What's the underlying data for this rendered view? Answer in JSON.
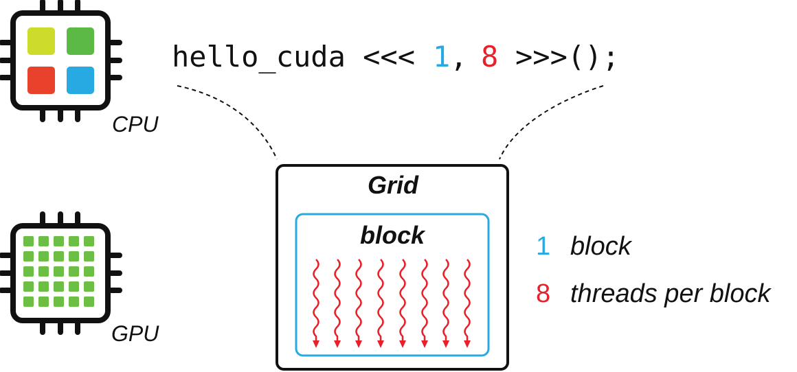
{
  "cpu": {
    "label": "CPU"
  },
  "gpu": {
    "label": "GPU"
  },
  "code": {
    "prefix": "hello_cuda <<<",
    "blocks": "1",
    "separator": ",",
    "threads": "8",
    "suffix": ">>>();"
  },
  "grid": {
    "label": "Grid",
    "block": {
      "label": "block"
    }
  },
  "legend": [
    {
      "number": "1",
      "text": "block"
    },
    {
      "number": "8",
      "text": "threads per block"
    }
  ]
}
